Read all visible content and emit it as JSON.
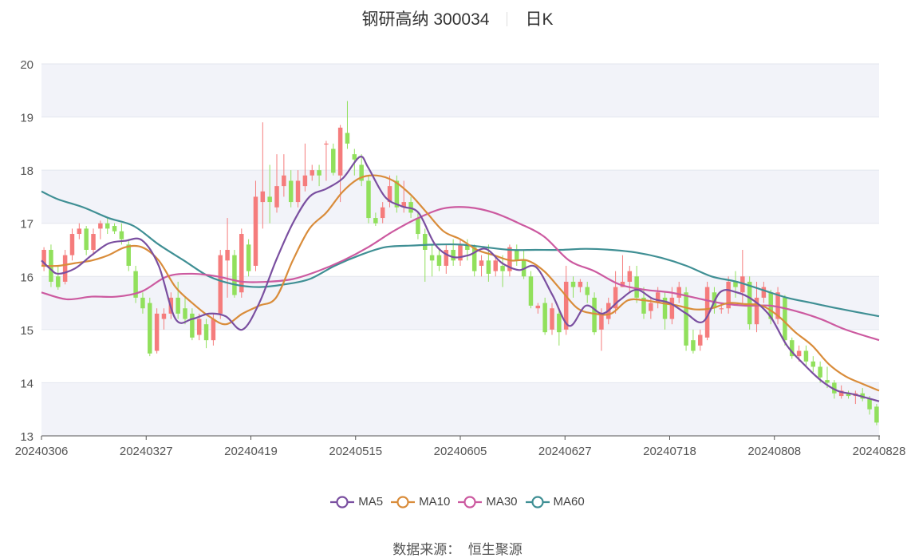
{
  "chart": {
    "title_name": "钢研高纳 300034",
    "title_period": "日K",
    "source_label": "数据来源：",
    "source_name": "恒生聚源"
  },
  "colors": {
    "up": "#f57c7c",
    "down": "#91e05c",
    "MA5": "#7a4fa0",
    "MA10": "#d98c3a",
    "MA30": "#cc5aa0",
    "MA60": "#3f8f94",
    "band": "#f2f3f9",
    "grid": "#e3e6ee",
    "axis": "#555555"
  },
  "chart_data": {
    "type": "candlestick",
    "ylim": [
      13,
      20
    ],
    "yticks": [
      13,
      14,
      15,
      16,
      17,
      18,
      19,
      20
    ],
    "xlabels": [
      "20240306",
      "20240327",
      "20240419",
      "20240515",
      "20240605",
      "20240627",
      "20240718",
      "20240808",
      "20240828"
    ],
    "legend": [
      "MA5",
      "MA10",
      "MA30",
      "MA60"
    ],
    "candles": [
      [
        16.2,
        16.5,
        16.1,
        16.55
      ],
      [
        16.5,
        15.9,
        15.8,
        16.6
      ],
      [
        16.0,
        15.8,
        15.75,
        16.2
      ],
      [
        15.9,
        16.4,
        15.85,
        16.5
      ],
      [
        16.4,
        16.8,
        16.3,
        16.9
      ],
      [
        16.8,
        16.9,
        16.7,
        17.0
      ],
      [
        16.9,
        16.5,
        16.4,
        16.95
      ],
      [
        16.5,
        16.8,
        16.4,
        16.9
      ],
      [
        16.9,
        17.0,
        16.7,
        17.05
      ],
      [
        17.0,
        16.9,
        16.8,
        17.1
      ],
      [
        16.95,
        16.85,
        16.8,
        17.0
      ],
      [
        16.85,
        16.7,
        16.6,
        17.0
      ],
      [
        16.6,
        16.2,
        16.1,
        16.7
      ],
      [
        16.1,
        15.6,
        15.5,
        16.2
      ],
      [
        15.6,
        15.4,
        15.3,
        15.7
      ],
      [
        15.5,
        14.55,
        14.5,
        15.6
      ],
      [
        14.6,
        15.3,
        14.55,
        15.4
      ],
      [
        15.2,
        15.3,
        15.0,
        15.4
      ],
      [
        15.3,
        15.6,
        15.2,
        15.7
      ],
      [
        15.6,
        15.3,
        15.2,
        15.9
      ],
      [
        15.4,
        15.2,
        15.1,
        15.6
      ],
      [
        15.3,
        14.85,
        14.8,
        15.4
      ],
      [
        14.9,
        15.2,
        14.8,
        15.3
      ],
      [
        15.1,
        14.8,
        14.65,
        15.2
      ],
      [
        14.8,
        15.2,
        14.7,
        15.3
      ],
      [
        15.3,
        16.4,
        15.2,
        16.5
      ],
      [
        16.3,
        16.5,
        15.6,
        17.1
      ],
      [
        16.4,
        15.65,
        15.6,
        16.5
      ],
      [
        15.7,
        16.8,
        15.6,
        16.9
      ],
      [
        16.6,
        16.1,
        16.0,
        16.7
      ],
      [
        16.2,
        17.5,
        16.1,
        17.8
      ],
      [
        17.4,
        17.6,
        16.9,
        18.9
      ],
      [
        17.5,
        17.4,
        17.0,
        18.1
      ],
      [
        17.3,
        17.7,
        17.2,
        18.3
      ],
      [
        17.7,
        17.9,
        17.5,
        18.3
      ],
      [
        17.8,
        17.4,
        17.3,
        18.0
      ],
      [
        17.4,
        17.8,
        17.3,
        18.0
      ],
      [
        17.7,
        17.9,
        17.6,
        18.5
      ],
      [
        17.9,
        18.0,
        17.8,
        18.1
      ],
      [
        18.0,
        17.9,
        17.7,
        18.1
      ],
      [
        18.5,
        18.5,
        17.8,
        18.55
      ],
      [
        18.4,
        17.95,
        17.9,
        18.5
      ],
      [
        17.9,
        18.8,
        17.4,
        18.85
      ],
      [
        18.7,
        18.5,
        18.4,
        19.3
      ],
      [
        18.3,
        18.2,
        17.9,
        18.4
      ],
      [
        18.1,
        17.8,
        17.7,
        18.3
      ],
      [
        17.8,
        17.1,
        17.0,
        17.9
      ],
      [
        17.1,
        17.0,
        16.95,
        17.2
      ],
      [
        17.1,
        17.3,
        17.0,
        17.4
      ],
      [
        17.4,
        17.7,
        17.3,
        17.9
      ],
      [
        17.8,
        17.3,
        17.2,
        17.9
      ],
      [
        17.3,
        17.4,
        17.2,
        17.8
      ],
      [
        17.4,
        17.2,
        17.1,
        17.5
      ],
      [
        17.1,
        16.8,
        16.7,
        17.2
      ],
      [
        16.8,
        16.5,
        15.9,
        16.9
      ],
      [
        16.4,
        16.3,
        16.0,
        16.6
      ],
      [
        16.4,
        16.2,
        16.1,
        16.5
      ],
      [
        16.2,
        16.5,
        16.05,
        16.6
      ],
      [
        16.5,
        16.3,
        16.2,
        16.7
      ],
      [
        16.3,
        16.6,
        16.2,
        16.7
      ],
      [
        16.6,
        16.5,
        16.3,
        16.7
      ],
      [
        16.55,
        16.1,
        16.0,
        16.6
      ],
      [
        16.2,
        16.3,
        16.0,
        16.4
      ],
      [
        16.3,
        16.05,
        15.9,
        16.6
      ],
      [
        16.1,
        16.3,
        16.0,
        16.4
      ],
      [
        16.2,
        16.1,
        15.8,
        16.4
      ],
      [
        16.1,
        16.55,
        16.0,
        16.6
      ],
      [
        16.5,
        16.3,
        16.2,
        16.6
      ],
      [
        16.3,
        16.0,
        15.95,
        16.5
      ],
      [
        16.0,
        15.45,
        15.4,
        16.1
      ],
      [
        15.4,
        15.45,
        15.3,
        15.5
      ],
      [
        15.5,
        14.95,
        14.9,
        15.6
      ],
      [
        15.0,
        15.4,
        14.9,
        15.5
      ],
      [
        15.3,
        14.95,
        14.7,
        15.4
      ],
      [
        15.0,
        15.9,
        14.9,
        16.2
      ],
      [
        15.9,
        15.8,
        15.6,
        16.0
      ],
      [
        15.8,
        15.9,
        15.7,
        15.95
      ],
      [
        15.8,
        15.65,
        15.5,
        15.9
      ],
      [
        15.6,
        14.95,
        14.9,
        15.7
      ],
      [
        15.0,
        15.3,
        14.6,
        15.4
      ],
      [
        15.2,
        15.5,
        15.1,
        15.6
      ],
      [
        15.4,
        15.8,
        15.3,
        16.1
      ],
      [
        15.8,
        15.9,
        15.8,
        16.4
      ],
      [
        15.9,
        16.1,
        15.7,
        16.2
      ],
      [
        16.0,
        15.6,
        15.5,
        16.2
      ],
      [
        15.6,
        15.3,
        15.2,
        15.8
      ],
      [
        15.35,
        15.5,
        15.2,
        15.6
      ],
      [
        15.5,
        15.7,
        15.4,
        15.8
      ],
      [
        15.6,
        15.2,
        15.0,
        15.7
      ],
      [
        15.2,
        15.6,
        15.1,
        15.8
      ],
      [
        15.6,
        15.8,
        15.5,
        15.9
      ],
      [
        15.7,
        14.7,
        14.6,
        15.8
      ],
      [
        14.8,
        14.6,
        14.55,
        15.0
      ],
      [
        14.7,
        14.9,
        14.6,
        15.0
      ],
      [
        14.85,
        15.8,
        14.8,
        15.9
      ],
      [
        15.7,
        15.4,
        15.3,
        15.8
      ],
      [
        15.4,
        15.4,
        15.3,
        15.5
      ],
      [
        15.4,
        15.9,
        15.3,
        16.0
      ],
      [
        15.9,
        15.8,
        15.6,
        16.1
      ],
      [
        15.7,
        16.0,
        15.5,
        16.5
      ],
      [
        15.9,
        15.1,
        15.0,
        16.0
      ],
      [
        15.1,
        15.6,
        14.95,
        15.9
      ],
      [
        15.6,
        15.8,
        15.5,
        15.9
      ],
      [
        15.7,
        15.2,
        15.1,
        15.75
      ],
      [
        15.2,
        15.7,
        15.1,
        15.8
      ],
      [
        15.6,
        14.8,
        14.7,
        15.65
      ],
      [
        14.8,
        14.5,
        14.45,
        14.85
      ],
      [
        14.5,
        14.6,
        14.4,
        14.7
      ],
      [
        14.6,
        14.4,
        14.3,
        14.7
      ],
      [
        14.4,
        14.3,
        14.2,
        14.5
      ],
      [
        14.3,
        14.1,
        14.0,
        14.4
      ],
      [
        14.05,
        14.0,
        13.9,
        14.3
      ],
      [
        14.0,
        13.8,
        13.7,
        14.05
      ],
      [
        13.75,
        13.85,
        13.7,
        13.95
      ],
      [
        13.8,
        13.75,
        13.7,
        13.85
      ],
      [
        13.75,
        13.8,
        13.6,
        13.85
      ],
      [
        13.8,
        13.7,
        13.65,
        13.9
      ],
      [
        13.7,
        13.5,
        13.4,
        13.75
      ],
      [
        13.55,
        13.25,
        13.2,
        13.6
      ]
    ],
    "MA5": [
      [
        0,
        16.3
      ],
      [
        0.01,
        16.15
      ],
      [
        0.02,
        16.05
      ],
      [
        0.04,
        16.15
      ],
      [
        0.06,
        16.4
      ],
      [
        0.08,
        16.62
      ],
      [
        0.1,
        16.67
      ],
      [
        0.12,
        16.68
      ],
      [
        0.14,
        16.2
      ],
      [
        0.16,
        15.2
      ],
      [
        0.18,
        15.2
      ],
      [
        0.2,
        15.3
      ],
      [
        0.22,
        15.25
      ],
      [
        0.24,
        15.0
      ],
      [
        0.26,
        15.5
      ],
      [
        0.28,
        16.3
      ],
      [
        0.3,
        17.0
      ],
      [
        0.32,
        17.5
      ],
      [
        0.34,
        17.65
      ],
      [
        0.36,
        17.85
      ],
      [
        0.38,
        18.25
      ],
      [
        0.39,
        18.05
      ],
      [
        0.41,
        17.5
      ],
      [
        0.43,
        17.32
      ],
      [
        0.45,
        17.2
      ],
      [
        0.47,
        16.6
      ],
      [
        0.49,
        16.37
      ],
      [
        0.51,
        16.4
      ],
      [
        0.53,
        16.52
      ],
      [
        0.55,
        16.25
      ],
      [
        0.57,
        16.12
      ],
      [
        0.59,
        16.18
      ],
      [
        0.61,
        15.65
      ],
      [
        0.63,
        15.07
      ],
      [
        0.65,
        15.45
      ],
      [
        0.67,
        15.3
      ],
      [
        0.69,
        15.55
      ],
      [
        0.71,
        15.75
      ],
      [
        0.73,
        15.58
      ],
      [
        0.75,
        15.5
      ],
      [
        0.77,
        15.3
      ],
      [
        0.79,
        15.15
      ],
      [
        0.81,
        15.7
      ],
      [
        0.83,
        15.7
      ],
      [
        0.85,
        15.55
      ],
      [
        0.87,
        15.25
      ],
      [
        0.89,
        14.7
      ],
      [
        0.91,
        14.35
      ],
      [
        0.93,
        14.05
      ],
      [
        0.95,
        13.85
      ],
      [
        0.97,
        13.78
      ],
      [
        1,
        13.65
      ]
    ],
    "MA10": [
      [
        0,
        16.2
      ],
      [
        0.02,
        16.2
      ],
      [
        0.04,
        16.25
      ],
      [
        0.06,
        16.3
      ],
      [
        0.08,
        16.4
      ],
      [
        0.1,
        16.55
      ],
      [
        0.12,
        16.55
      ],
      [
        0.14,
        16.3
      ],
      [
        0.16,
        15.8
      ],
      [
        0.18,
        15.5
      ],
      [
        0.2,
        15.25
      ],
      [
        0.22,
        15.1
      ],
      [
        0.24,
        15.3
      ],
      [
        0.26,
        15.45
      ],
      [
        0.28,
        15.6
      ],
      [
        0.3,
        16.3
      ],
      [
        0.32,
        16.9
      ],
      [
        0.34,
        17.2
      ],
      [
        0.36,
        17.6
      ],
      [
        0.38,
        17.85
      ],
      [
        0.4,
        17.9
      ],
      [
        0.42,
        17.8
      ],
      [
        0.44,
        17.55
      ],
      [
        0.46,
        17.2
      ],
      [
        0.48,
        16.85
      ],
      [
        0.5,
        16.7
      ],
      [
        0.52,
        16.5
      ],
      [
        0.54,
        16.4
      ],
      [
        0.56,
        16.3
      ],
      [
        0.58,
        16.3
      ],
      [
        0.6,
        16.1
      ],
      [
        0.62,
        15.75
      ],
      [
        0.64,
        15.4
      ],
      [
        0.66,
        15.3
      ],
      [
        0.68,
        15.3
      ],
      [
        0.7,
        15.55
      ],
      [
        0.72,
        15.55
      ],
      [
        0.74,
        15.5
      ],
      [
        0.76,
        15.45
      ],
      [
        0.78,
        15.38
      ],
      [
        0.8,
        15.4
      ],
      [
        0.82,
        15.5
      ],
      [
        0.84,
        15.48
      ],
      [
        0.86,
        15.45
      ],
      [
        0.88,
        15.25
      ],
      [
        0.9,
        14.95
      ],
      [
        0.92,
        14.7
      ],
      [
        0.94,
        14.35
      ],
      [
        0.96,
        14.12
      ],
      [
        0.98,
        13.98
      ],
      [
        1,
        13.85
      ]
    ],
    "MA30": [
      [
        0,
        15.7
      ],
      [
        0.03,
        15.57
      ],
      [
        0.06,
        15.62
      ],
      [
        0.09,
        15.62
      ],
      [
        0.12,
        15.72
      ],
      [
        0.15,
        16.0
      ],
      [
        0.18,
        16.05
      ],
      [
        0.21,
        16.0
      ],
      [
        0.24,
        15.9
      ],
      [
        0.27,
        15.9
      ],
      [
        0.3,
        15.95
      ],
      [
        0.33,
        16.1
      ],
      [
        0.36,
        16.3
      ],
      [
        0.39,
        16.55
      ],
      [
        0.42,
        16.85
      ],
      [
        0.45,
        17.1
      ],
      [
        0.48,
        17.28
      ],
      [
        0.51,
        17.3
      ],
      [
        0.54,
        17.2
      ],
      [
        0.57,
        17.0
      ],
      [
        0.6,
        16.75
      ],
      [
        0.63,
        16.3
      ],
      [
        0.66,
        16.1
      ],
      [
        0.69,
        15.85
      ],
      [
        0.72,
        15.75
      ],
      [
        0.75,
        15.7
      ],
      [
        0.78,
        15.6
      ],
      [
        0.81,
        15.5
      ],
      [
        0.84,
        15.45
      ],
      [
        0.87,
        15.45
      ],
      [
        0.9,
        15.35
      ],
      [
        0.93,
        15.2
      ],
      [
        0.96,
        15.0
      ],
      [
        1,
        14.8
      ]
    ],
    "MA60": [
      [
        0,
        17.6
      ],
      [
        0.02,
        17.45
      ],
      [
        0.05,
        17.3
      ],
      [
        0.08,
        17.1
      ],
      [
        0.11,
        16.95
      ],
      [
        0.14,
        16.6
      ],
      [
        0.17,
        16.3
      ],
      [
        0.2,
        16.0
      ],
      [
        0.23,
        15.85
      ],
      [
        0.26,
        15.8
      ],
      [
        0.29,
        15.85
      ],
      [
        0.32,
        15.95
      ],
      [
        0.35,
        16.2
      ],
      [
        0.38,
        16.4
      ],
      [
        0.41,
        16.55
      ],
      [
        0.44,
        16.58
      ],
      [
        0.47,
        16.6
      ],
      [
        0.5,
        16.6
      ],
      [
        0.53,
        16.55
      ],
      [
        0.56,
        16.5
      ],
      [
        0.59,
        16.5
      ],
      [
        0.62,
        16.5
      ],
      [
        0.65,
        16.52
      ],
      [
        0.68,
        16.5
      ],
      [
        0.71,
        16.45
      ],
      [
        0.74,
        16.35
      ],
      [
        0.77,
        16.2
      ],
      [
        0.8,
        16.0
      ],
      [
        0.83,
        15.9
      ],
      [
        0.86,
        15.75
      ],
      [
        0.89,
        15.6
      ],
      [
        0.92,
        15.5
      ],
      [
        0.95,
        15.4
      ],
      [
        1,
        15.25
      ]
    ]
  }
}
